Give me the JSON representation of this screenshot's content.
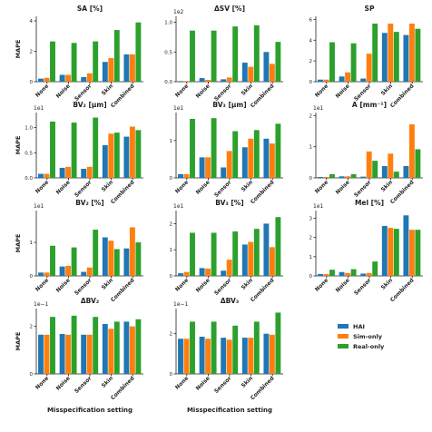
{
  "colors": {
    "HAI": "#1f77b4",
    "Sim-only": "#ff7f0e",
    "Real-only": "#2ca02c"
  },
  "legend": [
    "HAI",
    "Sim-only",
    "Real-only"
  ],
  "ylabel": "MAPE",
  "xlabel": "Misspecification setting",
  "chart_data": [
    {
      "type": "bar",
      "title": "SA [%]",
      "multiplier": "",
      "ylim": [
        0,
        4.3
      ],
      "yticks": [
        "0",
        "2",
        "4"
      ],
      "ytickvals": [
        0,
        2,
        4
      ],
      "categories": [
        "None",
        "Noise",
        "Sensor",
        "Skin",
        "Combined"
      ],
      "series": [
        {
          "name": "HAI",
          "values": [
            0.2,
            0.45,
            0.3,
            1.3,
            1.8
          ]
        },
        {
          "name": "Sim-only",
          "values": [
            0.25,
            0.45,
            0.55,
            1.55,
            1.8
          ]
        },
        {
          "name": "Real-only",
          "values": [
            2.65,
            2.55,
            2.65,
            3.4,
            3.9
          ]
        }
      ]
    },
    {
      "type": "bar",
      "title": "ΔSV [%]",
      "multiplier": "1e2",
      "ylim": [
        0,
        1.1
      ],
      "yticks": [
        "0.0",
        "0.5",
        "1.0"
      ],
      "ytickvals": [
        0,
        0.5,
        1.0
      ],
      "categories": [
        "None",
        "Noise",
        "Sensor",
        "Skin",
        "Combined"
      ],
      "series": [
        {
          "name": "HAI",
          "values": [
            0.01,
            0.06,
            0.04,
            0.32,
            0.5
          ]
        },
        {
          "name": "Sim-only",
          "values": [
            0.01,
            0.03,
            0.07,
            0.25,
            0.3
          ]
        },
        {
          "name": "Real-only",
          "values": [
            0.86,
            0.86,
            0.93,
            0.95,
            0.67
          ]
        }
      ]
    },
    {
      "type": "bar",
      "title": "SP",
      "multiplier": "",
      "ylim": [
        0,
        6.3
      ],
      "yticks": [
        "0",
        "2",
        "4",
        "6"
      ],
      "ytickvals": [
        0,
        2,
        4,
        6
      ],
      "categories": [
        "None",
        "Noise",
        "Sensor",
        "Skin",
        "Combined"
      ],
      "series": [
        {
          "name": "HAI",
          "values": [
            0.2,
            0.5,
            0.3,
            4.7,
            4.5
          ]
        },
        {
          "name": "Sim-only",
          "values": [
            0.2,
            0.9,
            2.7,
            5.6,
            5.6
          ]
        },
        {
          "name": "Real-only",
          "values": [
            3.8,
            3.7,
            5.6,
            4.8,
            5.1
          ]
        }
      ]
    },
    {
      "type": "bar",
      "title": "BV₂ [µm]",
      "multiplier": "1e1",
      "ylim": [
        0,
        1.3
      ],
      "yticks": [
        "0.0",
        "0.5",
        "1.0"
      ],
      "ytickvals": [
        0,
        0.5,
        1.0
      ],
      "categories": [
        "None",
        "Noise",
        "Sensor",
        "Skin",
        "Combined"
      ],
      "series": [
        {
          "name": "HAI",
          "values": [
            0.08,
            0.2,
            0.18,
            0.65,
            0.82
          ]
        },
        {
          "name": "Sim-only",
          "values": [
            0.08,
            0.22,
            0.22,
            0.88,
            1.02
          ]
        },
        {
          "name": "Real-only",
          "values": [
            1.12,
            1.1,
            1.2,
            0.9,
            0.95
          ]
        }
      ]
    },
    {
      "type": "bar",
      "title": "BV₃ [µm]",
      "multiplier": "1e1",
      "ylim": [
        0,
        1.75
      ],
      "yticks": [
        "0",
        "1"
      ],
      "ytickvals": [
        0,
        1
      ],
      "categories": [
        "None",
        "Noise",
        "Sensor",
        "Skin",
        "Combined"
      ],
      "series": [
        {
          "name": "HAI",
          "values": [
            0.1,
            0.55,
            0.28,
            0.82,
            1.05
          ]
        },
        {
          "name": "Sim-only",
          "values": [
            0.1,
            0.55,
            0.72,
            1.05,
            0.92
          ]
        },
        {
          "name": "Real-only",
          "values": [
            1.58,
            1.6,
            1.25,
            1.28,
            1.45
          ]
        }
      ]
    },
    {
      "type": "bar",
      "title": "A [mm⁻¹]",
      "multiplier": "1e1",
      "ylim": [
        0,
        2.1
      ],
      "yticks": [
        "0",
        "1",
        "2"
      ],
      "ytickvals": [
        0,
        1,
        2
      ],
      "categories": [
        "None",
        "Noise",
        "Sensor",
        "Skin",
        "Combined"
      ],
      "series": [
        {
          "name": "HAI",
          "values": [
            0.03,
            0.05,
            0.04,
            0.38,
            0.38
          ]
        },
        {
          "name": "Sim-only",
          "values": [
            0.03,
            0.05,
            0.85,
            0.78,
            1.72
          ]
        },
        {
          "name": "Real-only",
          "values": [
            0.12,
            0.12,
            0.55,
            0.2,
            0.92
          ]
        }
      ]
    },
    {
      "type": "bar",
      "title": "BV₂ [%]",
      "multiplier": "1e1",
      "ylim": [
        0,
        1.95
      ],
      "yticks": [
        "0",
        "1"
      ],
      "ytickvals": [
        0,
        1
      ],
      "categories": [
        "None",
        "Noise",
        "Sensor",
        "Skin",
        "Combined"
      ],
      "series": [
        {
          "name": "HAI",
          "values": [
            0.1,
            0.28,
            0.12,
            1.15,
            0.82
          ]
        },
        {
          "name": "Sim-only",
          "values": [
            0.1,
            0.3,
            0.25,
            1.05,
            1.45
          ]
        },
        {
          "name": "Real-only",
          "values": [
            0.9,
            0.85,
            1.38,
            0.8,
            1.0
          ]
        }
      ]
    },
    {
      "type": "bar",
      "title": "BV₃ [%]",
      "multiplier": "1e1",
      "ylim": [
        0,
        2.5
      ],
      "yticks": [
        "0",
        "1",
        "2"
      ],
      "ytickvals": [
        0,
        1,
        2
      ],
      "categories": [
        "None",
        "Noise",
        "Sensor",
        "Skin",
        "Combined"
      ],
      "series": [
        {
          "name": "HAI",
          "values": [
            0.1,
            0.3,
            0.2,
            1.2,
            2.0
          ]
        },
        {
          "name": "Sim-only",
          "values": [
            0.15,
            0.28,
            0.62,
            1.3,
            1.1
          ]
        },
        {
          "name": "Real-only",
          "values": [
            1.65,
            1.65,
            1.7,
            1.8,
            2.25
          ]
        }
      ]
    },
    {
      "type": "bar",
      "title": "Mel [%]",
      "multiplier": "1e1",
      "ylim": [
        0,
        3.4
      ],
      "yticks": [
        "0",
        "1",
        "2",
        "3"
      ],
      "ytickvals": [
        0,
        1,
        2,
        3
      ],
      "categories": [
        "None",
        "Noise",
        "Sensor",
        "Skin",
        "Combined"
      ],
      "series": [
        {
          "name": "HAI",
          "values": [
            0.1,
            0.2,
            0.12,
            2.6,
            3.15
          ]
        },
        {
          "name": "Sim-only",
          "values": [
            0.1,
            0.15,
            0.15,
            2.5,
            2.4
          ]
        },
        {
          "name": "Real-only",
          "values": [
            0.32,
            0.35,
            0.75,
            2.45,
            2.4
          ]
        }
      ]
    },
    {
      "type": "bar",
      "title": "ΔBV₂",
      "multiplier": "1e−1",
      "ylim": [
        0,
        2.75
      ],
      "yticks": [
        "0",
        "2"
      ],
      "ytickvals": [
        0,
        2
      ],
      "categories": [
        "None",
        "Noise",
        "Sensor",
        "Skin",
        "Combined"
      ],
      "series": [
        {
          "name": "HAI",
          "values": [
            1.65,
            1.68,
            1.65,
            2.1,
            2.2
          ]
        },
        {
          "name": "Sim-only",
          "values": [
            1.65,
            1.65,
            1.65,
            1.9,
            2.0
          ]
        },
        {
          "name": "Real-only",
          "values": [
            2.4,
            2.45,
            2.4,
            2.2,
            2.3
          ]
        }
      ]
    },
    {
      "type": "bar",
      "title": "ΔBV₃",
      "multiplier": "1e−1",
      "ylim": [
        0,
        3.25
      ],
      "yticks": [
        "0",
        "2"
      ],
      "ytickvals": [
        0,
        2
      ],
      "categories": [
        "None",
        "Noise",
        "Sensor",
        "Skin",
        "Combined"
      ],
      "series": [
        {
          "name": "HAI",
          "values": [
            1.75,
            1.85,
            1.8,
            1.8,
            2.0
          ]
        },
        {
          "name": "Sim-only",
          "values": [
            1.75,
            1.75,
            1.7,
            1.8,
            1.95
          ]
        },
        {
          "name": "Real-only",
          "values": [
            2.6,
            2.6,
            2.4,
            2.6,
            3.05
          ]
        }
      ]
    }
  ]
}
